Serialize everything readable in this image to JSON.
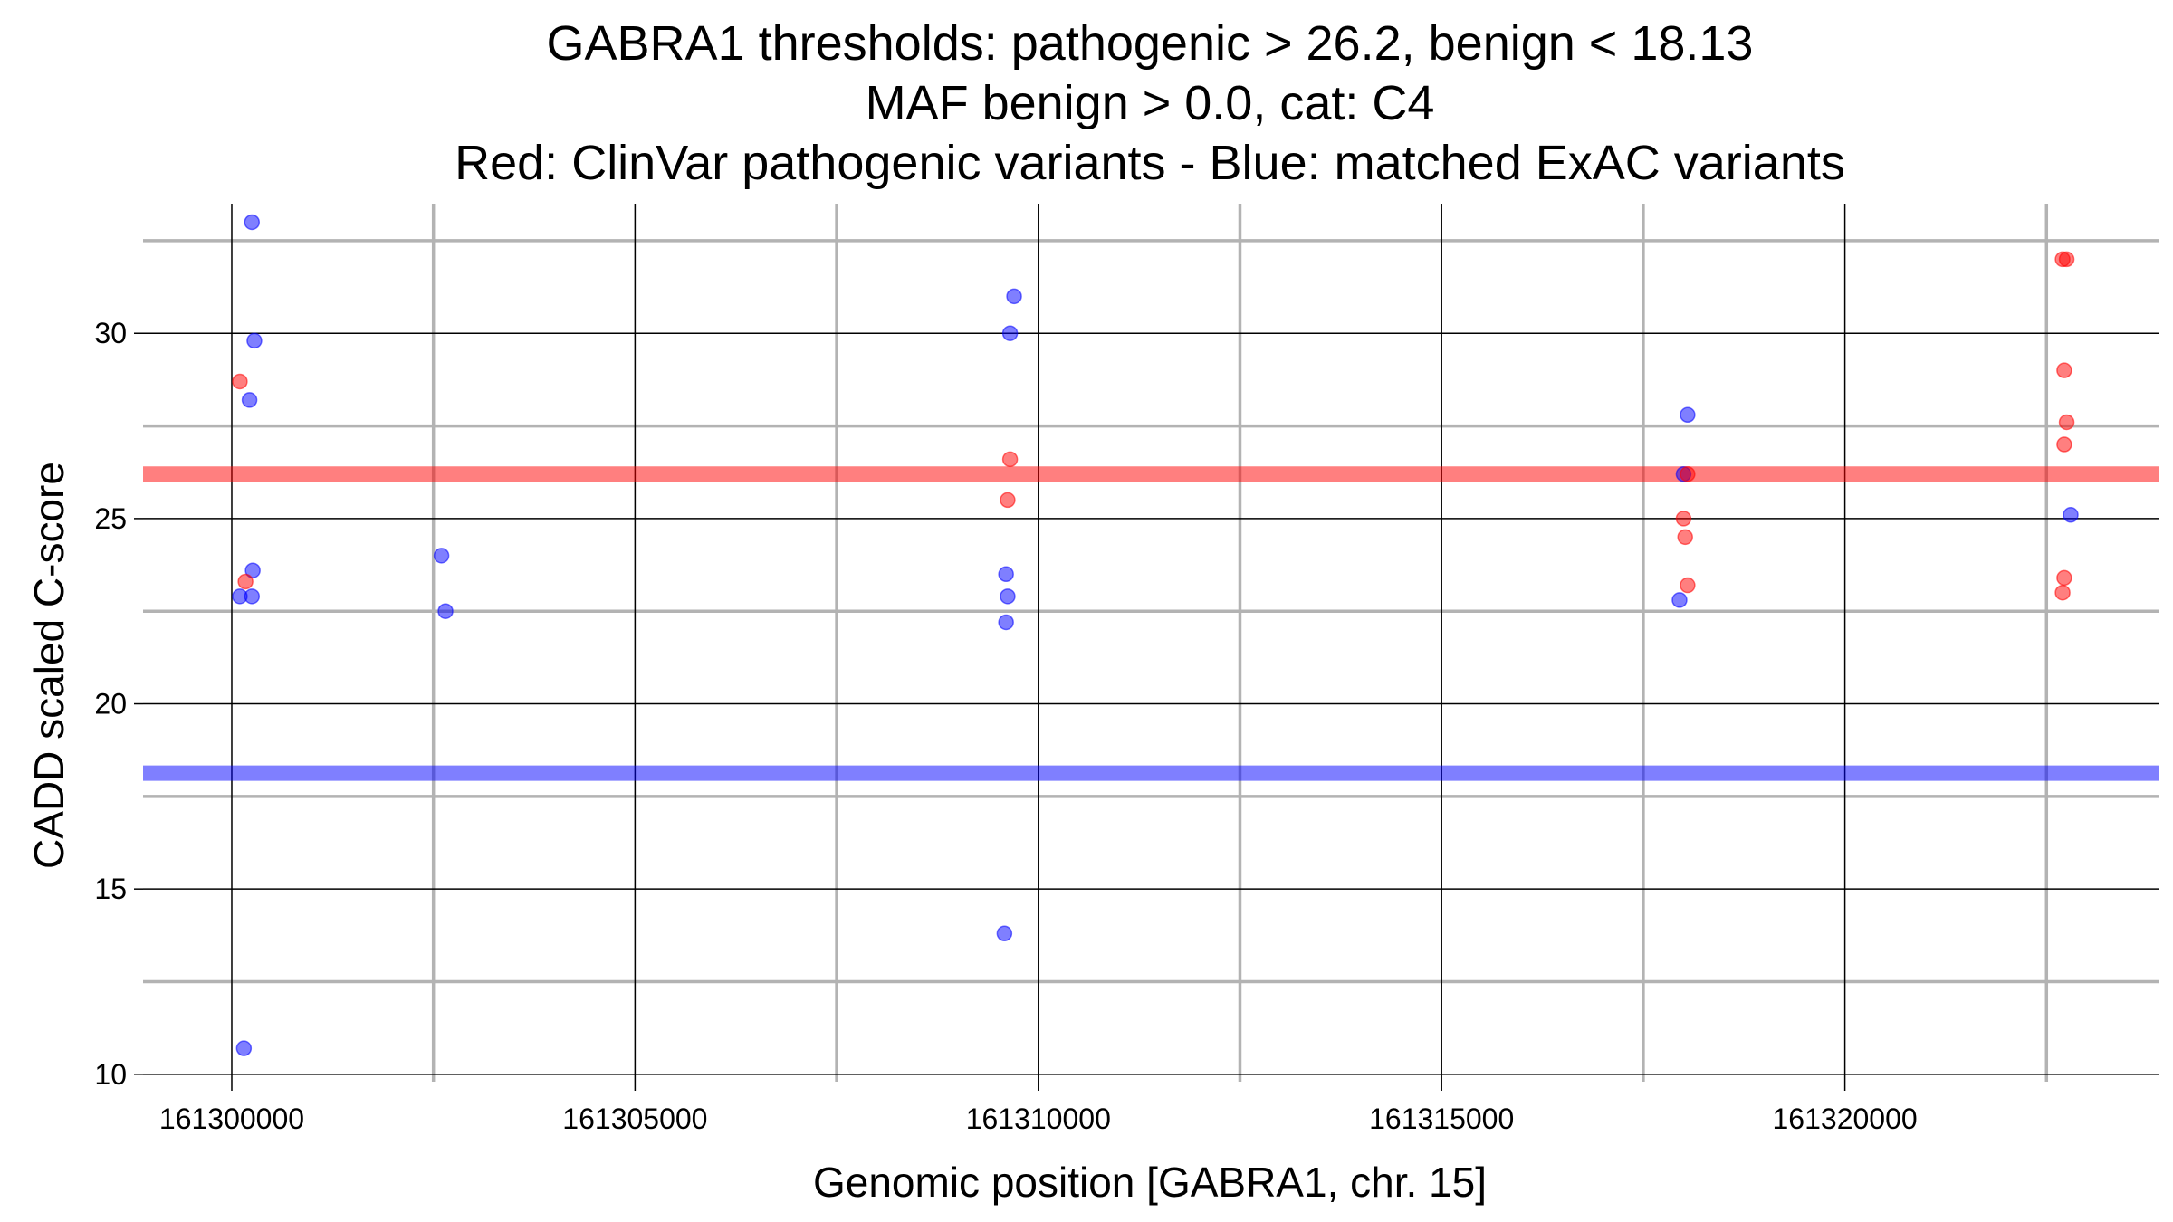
{
  "chart_data": {
    "type": "scatter",
    "title_lines": [
      "GABRA1 thresholds: pathogenic > 26.2, benign < 18.13",
      "MAF benign > 0.0, cat: C4",
      "Red: ClinVar pathogenic variants - Blue: matched ExAC variants"
    ],
    "xlabel": "Genomic position [GABRA1, chr. 15]",
    "ylabel": "CADD scaled C-score",
    "xlim": [
      161298900,
      161323900
    ],
    "ylim": [
      9.8,
      33.5
    ],
    "x_ticks": [
      161300000,
      161305000,
      161310000,
      161315000,
      161320000
    ],
    "x_tick_labels": [
      "161300000",
      "161305000",
      "161310000",
      "161315000",
      "161320000"
    ],
    "x_minor": [
      161302500,
      161307500,
      161312500,
      161317500,
      161322500
    ],
    "y_ticks": [
      10,
      15,
      20,
      25,
      30
    ],
    "y_tick_labels": [
      "10",
      "15",
      "20",
      "25",
      "30"
    ],
    "y_minor": [
      12.5,
      17.5,
      22.5,
      27.5,
      32.5
    ],
    "grid": true,
    "thresholds": [
      {
        "name": "pathogenic",
        "value": 26.2,
        "color": "#ff0000"
      },
      {
        "name": "benign",
        "value": 18.13,
        "color": "#0000ff"
      }
    ],
    "series": [
      {
        "color": "#0000ff",
        "x": [
          161300250,
          161300280,
          161300220,
          161300100,
          161300250,
          161300260,
          161300150,
          161302600,
          161302650,
          161309700,
          161309650,
          161309600,
          161309620,
          161309600,
          161309580,
          161318050,
          161318000,
          161317950,
          161322800
        ],
        "y": [
          33.0,
          29.8,
          28.2,
          22.9,
          22.9,
          23.6,
          10.7,
          24.0,
          22.5,
          31.0,
          30.0,
          23.5,
          22.9,
          22.2,
          13.8,
          27.8,
          26.2,
          22.8,
          25.1
        ]
      },
      {
        "color": "#ff0000",
        "x": [
          161300100,
          161300170,
          161309650,
          161309620,
          161318050,
          161318000,
          161318020,
          161318050,
          161322700,
          161322750,
          161322720,
          161322750,
          161322720,
          161322720,
          161322700
        ],
        "y": [
          28.7,
          23.3,
          26.6,
          25.5,
          26.2,
          25.0,
          24.5,
          23.2,
          32.0,
          32.0,
          29.0,
          27.6,
          27.0,
          23.4,
          23.0
        ]
      }
    ]
  }
}
